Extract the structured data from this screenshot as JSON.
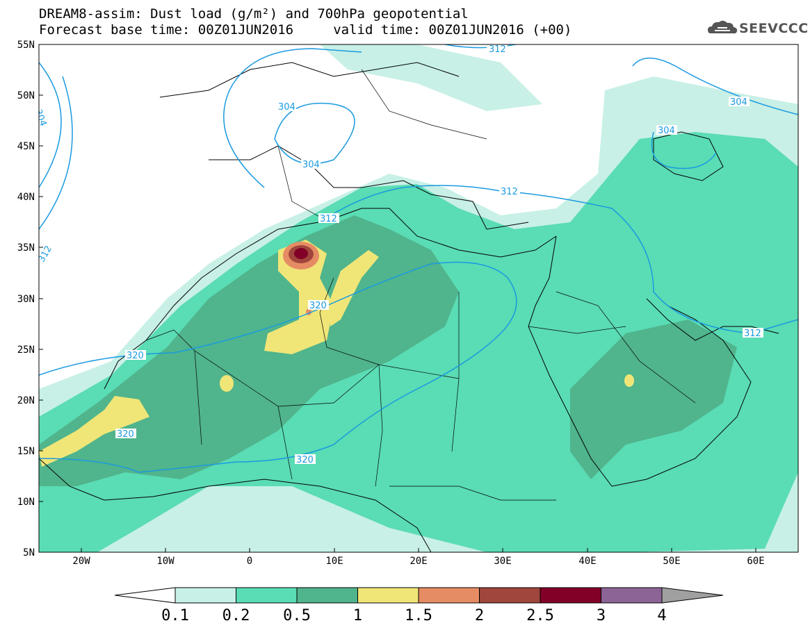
{
  "title": {
    "line1": "DREAM8-assim: Dust load (g/m²) and 700hPa geopotential",
    "line2": "Forecast base time: 00Z01JUN2016     valid time: 00Z01JUN2016 (+00)"
  },
  "logo": {
    "text": "SEEVCCC",
    "icon": "cloud-icon"
  },
  "axes": {
    "lat_labels": [
      "55N",
      "50N",
      "45N",
      "40N",
      "35N",
      "30N",
      "25N",
      "20N",
      "15N",
      "10N",
      "5N"
    ],
    "lon_labels": [
      "20W",
      "10W",
      "0",
      "10E",
      "20E",
      "30E",
      "40E",
      "50E",
      "60E"
    ]
  },
  "colorbar": {
    "labels": [
      "0.1",
      "0.2",
      "0.5",
      "1",
      "1.5",
      "2",
      "2.5",
      "3",
      "4"
    ],
    "colors": [
      "#c8f0e6",
      "#5adcb4",
      "#50b48c",
      "#f0e678",
      "#e68c64",
      "#a0463c",
      "#820028",
      "#8c6496",
      "#a0a0a0"
    ]
  },
  "contours": {
    "labels": [
      "312",
      "304",
      "304",
      "304",
      "304",
      "312",
      "312",
      "312",
      "320",
      "320",
      "320",
      "320",
      "304",
      "312"
    ],
    "color": "#1a9ae0"
  }
}
